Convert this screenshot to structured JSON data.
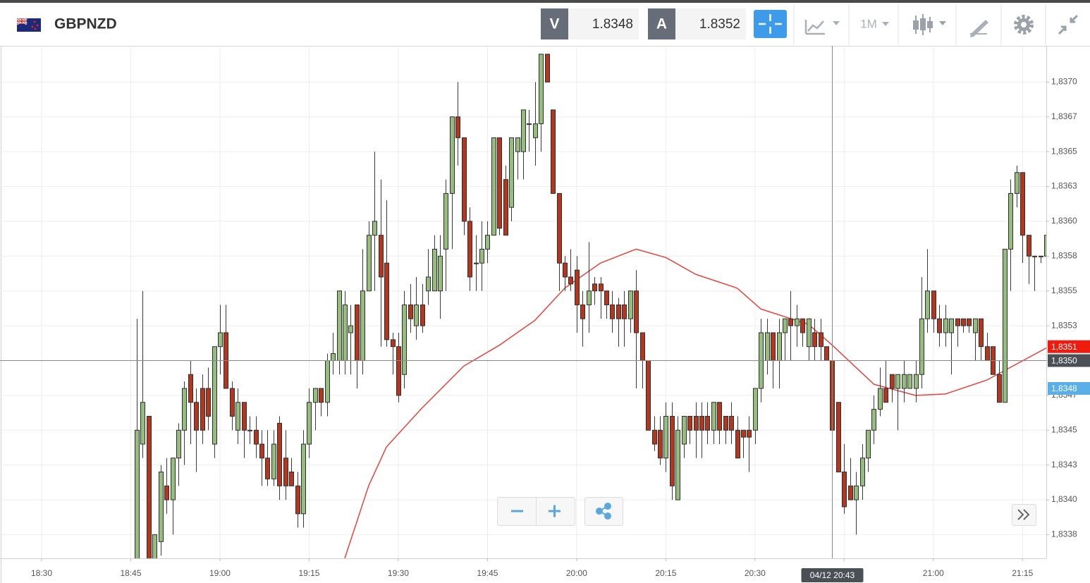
{
  "header": {
    "symbol": "GBPNZD",
    "bid_label": "V",
    "bid": 1.8348,
    "ask_label": "A",
    "ask": 1.8352,
    "timeframe": "1M"
  },
  "chart_data": {
    "type": "candlestick",
    "up_color": "#95bd7d",
    "down_color": "#b5361e",
    "grid": true,
    "xlim": [
      "18:23",
      "21:19"
    ],
    "xticks": [
      "18:30",
      "18:45",
      "19:00",
      "19:15",
      "19:30",
      "19:45",
      "20:00",
      "20:15",
      "20:30",
      "20:45",
      "21:00",
      "21:15"
    ],
    "ylim": [
      1.83358,
      1.83726
    ],
    "yticks": [
      {
        "value": 1.837,
        "label": "1,8370"
      },
      {
        "value": 1.83675,
        "label": "1,8367"
      },
      {
        "value": 1.8365,
        "label": "1,8365"
      },
      {
        "value": 1.83625,
        "label": "1,8363"
      },
      {
        "value": 1.836,
        "label": "1,8360"
      },
      {
        "value": 1.83575,
        "label": "1,8358"
      },
      {
        "value": 1.8355,
        "label": "1,8355"
      },
      {
        "value": 1.83525,
        "label": "1,8353"
      },
      {
        "value": 1.835,
        "label": "1,8350"
      },
      {
        "value": 1.83475,
        "label": "1,8347"
      },
      {
        "value": 1.8345,
        "label": "1,8345"
      },
      {
        "value": 1.83425,
        "label": "1,8343"
      },
      {
        "value": 1.834,
        "label": "1,8340"
      },
      {
        "value": 1.83375,
        "label": "1,8338"
      }
    ],
    "x": [
      "18:46",
      "18:47",
      "18:48",
      "18:49",
      "18:50",
      "18:51",
      "18:52",
      "18:53",
      "18:54",
      "18:55",
      "18:56",
      "18:57",
      "18:58",
      "18:59",
      "19:00",
      "19:01",
      "19:02",
      "19:03",
      "19:04",
      "19:05",
      "19:06",
      "19:07",
      "19:08",
      "19:09",
      "19:10",
      "19:11",
      "19:12",
      "19:13",
      "19:14",
      "19:15",
      "19:16",
      "19:17",
      "19:18",
      "19:19",
      "19:20",
      "19:21",
      "19:22",
      "19:23",
      "19:24",
      "19:25",
      "19:26",
      "19:27",
      "19:28",
      "19:29",
      "19:30",
      "19:31",
      "19:32",
      "19:33",
      "19:34",
      "19:35",
      "19:36",
      "19:37",
      "19:38",
      "19:39",
      "19:40",
      "19:41",
      "19:42",
      "19:43",
      "19:44",
      "19:45",
      "19:46",
      "19:47",
      "19:48",
      "19:49",
      "19:50",
      "19:51",
      "19:52",
      "19:53",
      "19:54",
      "19:55",
      "19:56",
      "19:57",
      "19:58",
      "19:59",
      "20:00",
      "20:01",
      "20:02",
      "20:03",
      "20:04",
      "20:05",
      "20:06",
      "20:07",
      "20:08",
      "20:09",
      "20:10",
      "20:11",
      "20:12",
      "20:13",
      "20:14",
      "20:15",
      "20:16",
      "20:17",
      "20:18",
      "20:19",
      "20:20",
      "20:21",
      "20:22",
      "20:23",
      "20:24",
      "20:25",
      "20:26",
      "20:27",
      "20:28",
      "20:29",
      "20:30",
      "20:31",
      "20:32",
      "20:33",
      "20:34",
      "20:35",
      "20:36",
      "20:37",
      "20:38",
      "20:39",
      "20:40",
      "20:41",
      "20:42",
      "20:43",
      "20:44",
      "20:45",
      "20:46",
      "20:47",
      "20:48",
      "20:49",
      "20:50",
      "20:51",
      "20:52",
      "20:53",
      "20:54",
      "20:55",
      "20:56",
      "20:57",
      "20:58",
      "20:59",
      "21:00",
      "21:01",
      "21:02",
      "21:03",
      "21:04",
      "21:05",
      "21:06",
      "21:07",
      "21:08",
      "21:09",
      "21:10",
      "21:11",
      "21:12",
      "21:13",
      "21:14",
      "21:15",
      "21:16",
      "21:17",
      "21:18",
      "21:19"
    ],
    "open": [
      1.8335,
      1.8344,
      1.8346,
      1.8335,
      1.8337,
      1.8341,
      1.834,
      1.8343,
      1.8345,
      1.8349,
      1.8347,
      1.8348,
      1.8348,
      1.8344,
      1.8351,
      1.8352,
      1.8348,
      1.8345,
      1.8347,
      1.8345,
      1.8345,
      1.8344,
      1.8343,
      1.83415,
      1.83455,
      1.8343,
      1.8342,
      1.8341,
      1.8339,
      1.8344,
      1.8347,
      1.8348,
      1.8347,
      1.835,
      1.835,
      1.835,
      1.8352,
      1.8354,
      1.835,
      1.8355,
      1.8359,
      1.8359,
      1.8357,
      1.83515,
      1.8351,
      1.8349,
      1.8354,
      1.83525,
      1.8354,
      1.8355,
      1.8355,
      1.8355,
      1.8358,
      1.8362,
      1.83675,
      1.8366,
      1.836,
      1.8357,
      1.8357,
      1.8358,
      1.8359,
      1.8366,
      1.8363,
      1.8361,
      1.8365,
      1.8365,
      1.8367,
      1.8366,
      1.8367,
      1.8372,
      1.8368,
      1.8362,
      1.8357,
      1.8356,
      1.83565,
      1.8354,
      1.8354,
      1.83555,
      1.83555,
      1.8355,
      1.8354,
      1.8354,
      1.8354,
      1.8353,
      1.8355,
      1.8352,
      1.835,
      1.8345,
      1.8345,
      1.8343,
      1.8346,
      1.834,
      1.8344,
      1.8346,
      1.8346,
      1.8346,
      1.8346,
      1.8345,
      1.8347,
      1.8346,
      1.8346,
      1.8345,
      1.8345,
      1.8345,
      1.8345,
      1.8348,
      1.835,
      1.8352,
      1.835,
      1.8352,
      1.8353,
      1.83525,
      1.8353,
      1.8351,
      1.8352,
      1.8352,
      1.8351,
      1.835,
      1.8347,
      1.8342,
      1.8341,
      1.834,
      1.8341,
      1.8343,
      1.8345,
      1.83465,
      1.8348,
      1.8349,
      1.8348,
      1.8348,
      1.8348,
      1.8348,
      1.8349,
      1.8353,
      1.8355,
      1.8353,
      1.8352,
      1.8352,
      1.8353,
      1.8353,
      1.8353,
      1.8352,
      1.8353,
      1.8351,
      1.8351,
      1.8349,
      1.8347,
      1.8358,
      1.8362,
      1.83635,
      1.8359,
      1.83575,
      1.83575,
      1.83575
    ],
    "high": [
      1.8353,
      1.8355,
      1.8346,
      1.83375,
      1.83425,
      1.8343,
      1.8343,
      1.83455,
      1.83485,
      1.835,
      1.8348,
      1.8349,
      1.83495,
      1.8351,
      1.8354,
      1.8354,
      1.83485,
      1.8348,
      1.8347,
      1.8346,
      1.8346,
      1.8345,
      1.8345,
      1.8345,
      1.8346,
      1.8345,
      1.8343,
      1.8342,
      1.8345,
      1.8348,
      1.8348,
      1.8348,
      1.83505,
      1.8352,
      1.8355,
      1.8355,
      1.8354,
      1.8354,
      1.8358,
      1.836,
      1.8365,
      1.8363,
      1.83615,
      1.8352,
      1.8352,
      1.8355,
      1.83555,
      1.8356,
      1.83555,
      1.8358,
      1.8359,
      1.8359,
      1.8363,
      1.83675,
      1.837,
      1.8366,
      1.8361,
      1.8359,
      1.836,
      1.836,
      1.8366,
      1.8366,
      1.8364,
      1.8366,
      1.8366,
      1.8368,
      1.8368,
      1.837,
      1.8372,
      1.8372,
      1.8368,
      1.8362,
      1.83575,
      1.8358,
      1.83575,
      1.8355,
      1.83585,
      1.8356,
      1.8356,
      1.8355,
      1.8355,
      1.83545,
      1.8355,
      1.8355,
      1.83565,
      1.8352,
      1.835,
      1.8346,
      1.8346,
      1.8347,
      1.8347,
      1.8346,
      1.8346,
      1.8346,
      1.8347,
      1.8347,
      1.8347,
      1.8347,
      1.8347,
      1.8346,
      1.8347,
      1.8346,
      1.8345,
      1.8346,
      1.8348,
      1.8353,
      1.8353,
      1.8352,
      1.8353,
      1.8353,
      1.8355,
      1.8354,
      1.8353,
      1.8353,
      1.8353,
      1.8353,
      1.8351,
      1.835,
      1.8347,
      1.8344,
      1.8343,
      1.8342,
      1.8344,
      1.8345,
      1.83475,
      1.83495,
      1.835,
      1.8349,
      1.8349,
      1.835,
      1.8349,
      1.835,
      1.8356,
      1.8358,
      1.8355,
      1.8354,
      1.8354,
      1.8353,
      1.8353,
      1.8353,
      1.8353,
      1.8353,
      1.8353,
      1.8352,
      1.8351,
      1.835,
      1.8358,
      1.8363,
      1.8364,
      1.83635,
      1.8359,
      1.83575,
      1.83575,
      1.8359
    ],
    "low": [
      1.8334,
      1.8343,
      1.8334,
      1.8334,
      1.8336,
      1.8339,
      1.83375,
      1.8341,
      1.83425,
      1.8344,
      1.8342,
      1.8344,
      1.8345,
      1.8343,
      1.8349,
      1.8348,
      1.8345,
      1.8344,
      1.8343,
      1.8344,
      1.8343,
      1.8341,
      1.8341,
      1.8341,
      1.834,
      1.834,
      1.8341,
      1.8338,
      1.8338,
      1.8343,
      1.8345,
      1.8346,
      1.8346,
      1.8349,
      1.8349,
      1.8349,
      1.8349,
      1.8348,
      1.8349,
      1.8355,
      1.8355,
      1.8351,
      1.8351,
      1.8349,
      1.8347,
      1.8348,
      1.8352,
      1.83515,
      1.8352,
      1.8354,
      1.8355,
      1.8353,
      1.8355,
      1.8358,
      1.8364,
      1.8359,
      1.8355,
      1.8355,
      1.8355,
      1.8357,
      1.8359,
      1.8359,
      1.8359,
      1.836,
      1.8363,
      1.8363,
      1.8365,
      1.8364,
      1.8365,
      1.837,
      1.8362,
      1.8355,
      1.8355,
      1.8355,
      1.8352,
      1.8351,
      1.8352,
      1.8354,
      1.8353,
      1.8353,
      1.8352,
      1.8351,
      1.8351,
      1.8352,
      1.8348,
      1.8348,
      1.8345,
      1.83435,
      1.83425,
      1.8342,
      1.834,
      1.834,
      1.8343,
      1.8344,
      1.8343,
      1.8343,
      1.8344,
      1.8344,
      1.8344,
      1.8344,
      1.8344,
      1.8343,
      1.8343,
      1.8342,
      1.8344,
      1.8347,
      1.8349,
      1.8348,
      1.8348,
      1.835,
      1.835,
      1.8351,
      1.8351,
      1.835,
      1.835,
      1.835,
      1.835,
      1.8345,
      1.8342,
      1.8339,
      1.834,
      1.83375,
      1.834,
      1.8342,
      1.8344,
      1.8346,
      1.8347,
      1.8347,
      1.8345,
      1.8347,
      1.8348,
      1.8347,
      1.8348,
      1.8352,
      1.8352,
      1.8351,
      1.8351,
      1.8349,
      1.8351,
      1.8352,
      1.8352,
      1.835,
      1.835,
      1.835,
      1.8349,
      1.8347,
      1.8347,
      1.8355,
      1.8361,
      1.8357,
      1.83555,
      1.8355,
      1.8357,
      1.8357
    ],
    "close": [
      1.8345,
      1.8347,
      1.8335,
      1.83375,
      1.8342,
      1.834,
      1.8343,
      1.8345,
      1.8348,
      1.8347,
      1.8345,
      1.8345,
      1.8346,
      1.8351,
      1.8352,
      1.8348,
      1.8346,
      1.8347,
      1.8345,
      1.8345,
      1.8344,
      1.8343,
      1.83415,
      1.8344,
      1.8341,
      1.8341,
      1.8341,
      1.8339,
      1.8344,
      1.8347,
      1.8348,
      1.8347,
      1.835,
      1.83505,
      1.8355,
      1.8354,
      1.83525,
      1.835,
      1.8355,
      1.8359,
      1.836,
      1.8356,
      1.83515,
      1.8351,
      1.83475,
      1.8354,
      1.8353,
      1.8354,
      1.83525,
      1.8356,
      1.8358,
      1.83575,
      1.8362,
      1.83675,
      1.8366,
      1.836,
      1.8356,
      1.8357,
      1.8358,
      1.8359,
      1.8366,
      1.83595,
      1.8359,
      1.8366,
      1.8366,
      1.8368,
      1.8367,
      1.8367,
      1.8372,
      1.837,
      1.8362,
      1.8357,
      1.8356,
      1.83555,
      1.8354,
      1.8353,
      1.8355,
      1.8355,
      1.8355,
      1.8354,
      1.8353,
      1.8353,
      1.8353,
      1.8355,
      1.8352,
      1.835,
      1.8345,
      1.8344,
      1.8343,
      1.8346,
      1.8341,
      1.8345,
      1.8346,
      1.8345,
      1.8345,
      1.8345,
      1.8345,
      1.8347,
      1.8345,
      1.8345,
      1.8345,
      1.8343,
      1.83445,
      1.83445,
      1.8348,
      1.8352,
      1.8352,
      1.835,
      1.8352,
      1.8353,
      1.83525,
      1.8353,
      1.8352,
      1.8353,
      1.8351,
      1.8351,
      1.835,
      1.8345,
      1.8342,
      1.83395,
      1.834,
      1.8341,
      1.8343,
      1.8345,
      1.83465,
      1.8348,
      1.8347,
      1.8348,
      1.8349,
      1.8349,
      1.8349,
      1.8349,
      1.8353,
      1.8355,
      1.8353,
      1.8352,
      1.8353,
      1.8353,
      1.83525,
      1.83525,
      1.83525,
      1.8353,
      1.8351,
      1.835,
      1.8349,
      1.8347,
      1.8358,
      1.8362,
      1.83635,
      1.8359,
      1.83575,
      1.83575,
      1.83575,
      1.8359
    ],
    "moving_average": {
      "color": "#e8423a",
      "x": [
        "19:21",
        "19:25",
        "19:28",
        "19:34",
        "19:41",
        "19:47",
        "19:53",
        "19:58",
        "20:04",
        "20:10",
        "20:15",
        "20:20",
        "20:27",
        "20:31",
        "20:39",
        "20:43",
        "20:50",
        "20:57",
        "21:02",
        "21:09",
        "21:19"
      ],
      "values": [
        1.83358,
        1.8341,
        1.83438,
        1.83466,
        1.83496,
        1.83511,
        1.83529,
        1.83552,
        1.8357,
        1.8358,
        1.83574,
        1.83562,
        1.83552,
        1.83537,
        1.83526,
        1.83511,
        1.83483,
        1.83475,
        1.83476,
        1.83486,
        1.83509
      ]
    },
    "price_markers": [
      {
        "value": 1.8351,
        "label": "1,8351",
        "color": "#ee1b0e"
      },
      {
        "value": 1.8348,
        "label": "1,8348",
        "color": "#5aafe8"
      }
    ],
    "crosshair": {
      "label": "04/12 20:43",
      "y": {
        "value": 1.835,
        "label": "1,8350"
      }
    }
  }
}
